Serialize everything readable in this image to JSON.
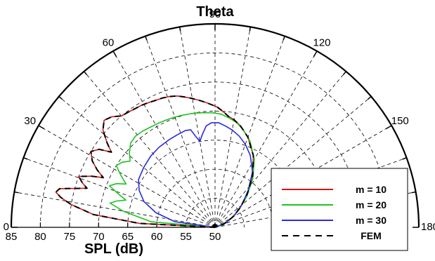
{
  "chart_data": {
    "type": "polar-line",
    "title": "Theta",
    "radial_label": "SPL (dB)",
    "theta_ticks": [
      "0",
      "30",
      "60",
      "90",
      "120",
      "150",
      "180"
    ],
    "r_ticks": [
      "85",
      "80",
      "75",
      "70",
      "65",
      "60",
      "55",
      "50"
    ],
    "r_range_db": [
      50,
      85
    ],
    "theta_range_deg": [
      0,
      180
    ],
    "grid": true,
    "legend_position": "bottom-right",
    "series": [
      {
        "name": "m = 10",
        "color": "#d01818",
        "style": "solid",
        "points": [
          [
            0,
            50
          ],
          [
            3,
            63
          ],
          [
            6,
            71
          ],
          [
            9,
            75
          ],
          [
            11,
            77
          ],
          [
            12.5,
            78
          ],
          [
            14,
            77.5
          ],
          [
            15.5,
            75
          ],
          [
            17,
            73
          ],
          [
            18.5,
            74
          ],
          [
            20.5,
            75
          ],
          [
            22.5,
            73
          ],
          [
            24,
            71
          ],
          [
            26,
            72.5
          ],
          [
            28.5,
            74
          ],
          [
            31.5,
            75
          ],
          [
            34,
            74
          ],
          [
            36,
            72
          ],
          [
            38,
            73.5
          ],
          [
            41,
            75.5
          ],
          [
            44,
            76.5
          ],
          [
            47,
            76
          ],
          [
            50,
            75
          ],
          [
            53,
            74.8
          ],
          [
            56,
            74.6
          ],
          [
            59,
            74.5
          ],
          [
            62,
            74.3
          ],
          [
            65,
            74.1
          ],
          [
            68,
            74
          ],
          [
            71,
            73.8
          ],
          [
            74,
            73.5
          ],
          [
            77,
            73
          ],
          [
            80,
            72.5
          ],
          [
            83,
            72
          ],
          [
            86,
            71.5
          ],
          [
            89,
            71
          ],
          [
            91,
            70.7
          ],
          [
            93,
            70.2
          ],
          [
            95,
            69.7
          ],
          [
            97,
            69.2
          ],
          [
            100,
            68.8
          ],
          [
            104,
            68
          ],
          [
            110,
            66.5
          ],
          [
            118,
            64
          ],
          [
            126,
            61
          ],
          [
            134,
            58
          ],
          [
            142,
            55.5
          ],
          [
            150,
            53.5
          ],
          [
            160,
            51.5
          ],
          [
            180,
            50
          ]
        ]
      },
      {
        "name": "m = 20",
        "color": "#1fc21f",
        "style": "solid",
        "points": [
          [
            0,
            50
          ],
          [
            5,
            61
          ],
          [
            10,
            66
          ],
          [
            13,
            68.5
          ],
          [
            15,
            67.5
          ],
          [
            17,
            66
          ],
          [
            19,
            67.5
          ],
          [
            21.5,
            69.5
          ],
          [
            24,
            68.5
          ],
          [
            26,
            67
          ],
          [
            29,
            68.5
          ],
          [
            32,
            70
          ],
          [
            35,
            69.5
          ],
          [
            38,
            68.5
          ],
          [
            41,
            69.5
          ],
          [
            45,
            70.5
          ],
          [
            49,
            70.8
          ],
          [
            53,
            70.7
          ],
          [
            57,
            70.5
          ],
          [
            61,
            70.4
          ],
          [
            65,
            70.3
          ],
          [
            69,
            70.2
          ],
          [
            73,
            70.1
          ],
          [
            77,
            70
          ],
          [
            81,
            69.9
          ],
          [
            85,
            69.8
          ],
          [
            89,
            69.7
          ],
          [
            93,
            69.5
          ],
          [
            97,
            69
          ],
          [
            101,
            68.5
          ],
          [
            106,
            67.5
          ],
          [
            112,
            66
          ],
          [
            120,
            63.5
          ],
          [
            128,
            60.5
          ],
          [
            136,
            57.5
          ],
          [
            144,
            55
          ],
          [
            152,
            53
          ],
          [
            162,
            51.5
          ],
          [
            180,
            50
          ]
        ]
      },
      {
        "name": "m = 30",
        "color": "#2a2ae0",
        "style": "solid",
        "points": [
          [
            0,
            50
          ],
          [
            8,
            57
          ],
          [
            14,
            60.5
          ],
          [
            20,
            63
          ],
          [
            26,
            64.5
          ],
          [
            32,
            65.5
          ],
          [
            40,
            66
          ],
          [
            48,
            66.5
          ],
          [
            55,
            66.8
          ],
          [
            62,
            67
          ],
          [
            68,
            67.2
          ],
          [
            73,
            67.4
          ],
          [
            76,
            67.3
          ],
          [
            78,
            66
          ],
          [
            80,
            65
          ],
          [
            82,
            66
          ],
          [
            85,
            67.5
          ],
          [
            88,
            68
          ],
          [
            92,
            68
          ],
          [
            96,
            67.5
          ],
          [
            100,
            67
          ],
          [
            105,
            66.2
          ],
          [
            110,
            65.2
          ],
          [
            116,
            63.8
          ],
          [
            124,
            61.5
          ],
          [
            132,
            58.5
          ],
          [
            140,
            56
          ],
          [
            148,
            54
          ],
          [
            158,
            52
          ],
          [
            180,
            50
          ]
        ]
      },
      {
        "name": "FEM",
        "color": "#000000",
        "style": "dashed",
        "points": [
          [
            0,
            50
          ],
          [
            3,
            63
          ],
          [
            6,
            71
          ],
          [
            9,
            75
          ],
          [
            11,
            77
          ],
          [
            12.5,
            78
          ],
          [
            14,
            77.5
          ],
          [
            15.5,
            75
          ],
          [
            17,
            73
          ],
          [
            18.5,
            74
          ],
          [
            20.5,
            75
          ],
          [
            22.5,
            73
          ],
          [
            24,
            71
          ],
          [
            26,
            72.5
          ],
          [
            28.5,
            74
          ],
          [
            31.5,
            75
          ],
          [
            34,
            74
          ],
          [
            36,
            72
          ],
          [
            38,
            73.5
          ],
          [
            41,
            75.5
          ],
          [
            44,
            76.5
          ],
          [
            47,
            76
          ],
          [
            50,
            75
          ],
          [
            53,
            74.8
          ],
          [
            56,
            74.6
          ],
          [
            59,
            74.5
          ],
          [
            62,
            74.3
          ],
          [
            65,
            74.1
          ],
          [
            68,
            74
          ],
          [
            71,
            73.8
          ],
          [
            74,
            73.5
          ],
          [
            77,
            73
          ],
          [
            80,
            72.5
          ],
          [
            83,
            72
          ],
          [
            86,
            71.5
          ],
          [
            89,
            71
          ],
          [
            91,
            70.7
          ],
          [
            93,
            70.2
          ],
          [
            95,
            69.7
          ],
          [
            97,
            69.2
          ],
          [
            100,
            68.8
          ],
          [
            104,
            68
          ],
          [
            110,
            66.5
          ],
          [
            118,
            64
          ],
          [
            126,
            61
          ],
          [
            134,
            58
          ],
          [
            142,
            55.5
          ],
          [
            150,
            53.5
          ],
          [
            160,
            51.5
          ],
          [
            180,
            50
          ]
        ]
      }
    ]
  }
}
